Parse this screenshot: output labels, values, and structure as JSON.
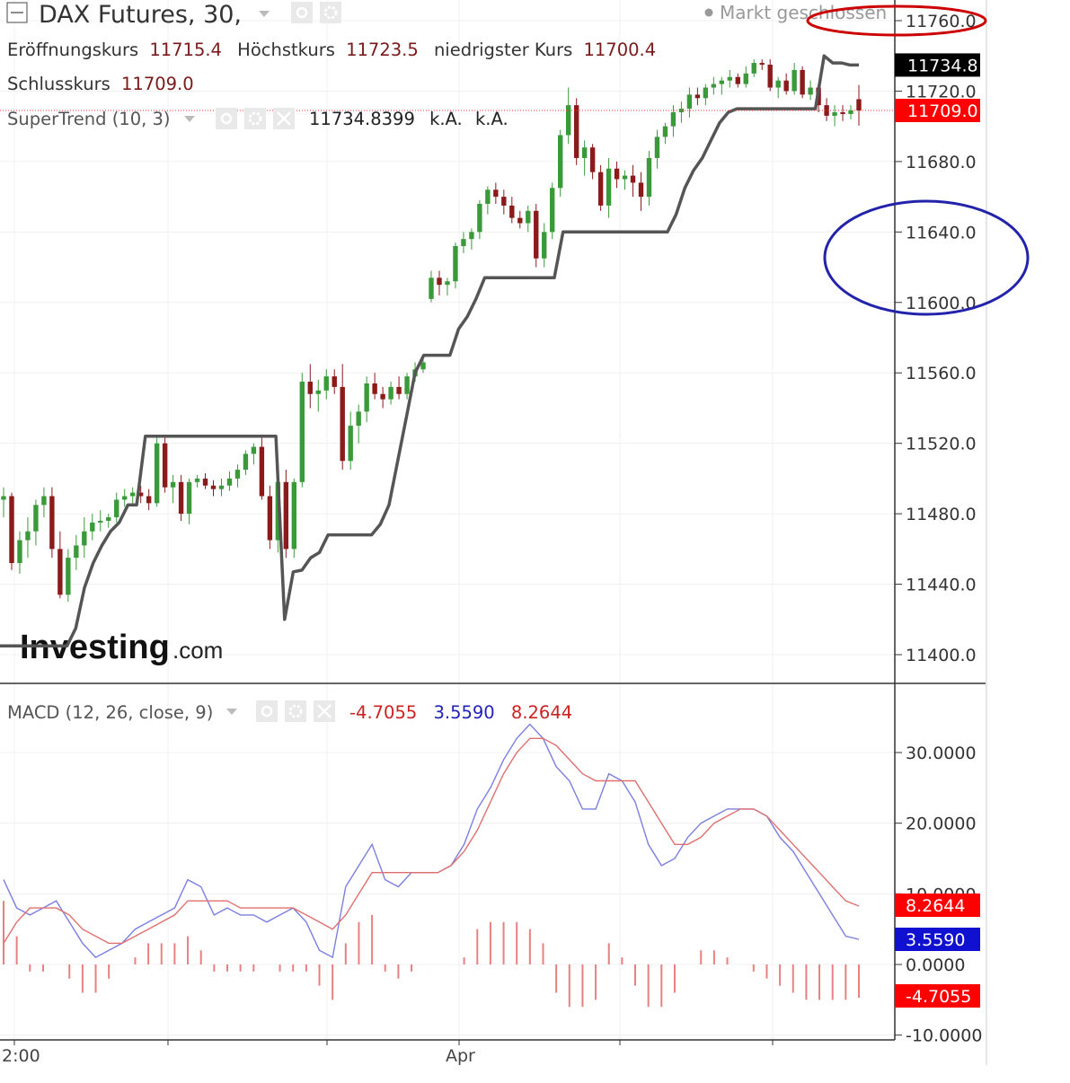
{
  "header": {
    "symbol": "DAX Futures, 30,",
    "market_status": "Markt geschlossen",
    "ohlc": [
      {
        "label": "Eröffnungskurs",
        "value": "11715.4"
      },
      {
        "label": "Höchstkurs",
        "value": "11723.5"
      },
      {
        "label": "niedrigster Kurs",
        "value": "11700.4"
      },
      {
        "label": "Schlusskurs",
        "value": "11709.0"
      }
    ]
  },
  "supertrend_legend": {
    "name": "SuperTrend (10, 3)",
    "value": "11734.8399",
    "v2": "k.A.",
    "v3": "k.A."
  },
  "macd_legend": {
    "name": "MACD (12, 26, close, 9)",
    "hist": "-4.7055",
    "macd": "3.5590",
    "signal": "8.2644"
  },
  "watermark": {
    "brand": "Investing",
    "suffix": ".com"
  },
  "colors": {
    "up": "#3a9a3a",
    "down": "#8b1a1a",
    "supertrend": "#555555",
    "macd_line": "#7b7fe0",
    "signal_line": "#e07070",
    "histogram": "#e88080",
    "last_price_bg": "#ff0000",
    "supertrend_tag_bg": "#000000",
    "macd_tag_bg": "#1010d0",
    "annotation_red": "#cc0000",
    "annotation_blue": "#2222aa"
  },
  "chart_data": [
    {
      "type": "candlestick",
      "name": "price",
      "y_ticks": [
        11760,
        11720,
        11680,
        11640,
        11600,
        11560,
        11520,
        11480,
        11440,
        11400
      ],
      "y_tick_labels": [
        "11760.0",
        "11720.0",
        "11680.0",
        "11640.0",
        "11600.0",
        "11560.0",
        "11520.0",
        "11480.0",
        "11440.0",
        "11400.0"
      ],
      "ylim": [
        11385,
        11765
      ],
      "x_labels": [
        "2:00",
        "Apr"
      ],
      "last_close": 11709.0,
      "last_close_label": "11709.0",
      "supertrend_last": 11734.8,
      "supertrend_label": "11734.8",
      "ohlc": [
        [
          11488,
          11495,
          11478,
          11490
        ],
        [
          11490,
          11492,
          11448,
          11452
        ],
        [
          11452,
          11470,
          11446,
          11465
        ],
        [
          11465,
          11478,
          11455,
          11470
        ],
        [
          11470,
          11488,
          11462,
          11485
        ],
        [
          11485,
          11495,
          11478,
          11490
        ],
        [
          11490,
          11495,
          11455,
          11460
        ],
        [
          11460,
          11470,
          11432,
          11434
        ],
        [
          11434,
          11460,
          11430,
          11455
        ],
        [
          11455,
          11468,
          11448,
          11462
        ],
        [
          11462,
          11478,
          11455,
          11470
        ],
        [
          11470,
          11480,
          11465,
          11475
        ],
        [
          11475,
          11482,
          11470,
          11476
        ],
        [
          11476,
          11480,
          11472,
          11478
        ],
        [
          11478,
          11492,
          11475,
          11488
        ],
        [
          11488,
          11494,
          11484,
          11490
        ],
        [
          11490,
          11495,
          11485,
          11492
        ],
        [
          11492,
          11496,
          11486,
          11490
        ],
        [
          11490,
          11494,
          11482,
          11486
        ],
        [
          11486,
          11524,
          11484,
          11520
        ],
        [
          11520,
          11524,
          11492,
          11495
        ],
        [
          11495,
          11502,
          11486,
          11498
        ],
        [
          11498,
          11502,
          11476,
          11480
        ],
        [
          11480,
          11500,
          11474,
          11498
        ],
        [
          11498,
          11502,
          11495,
          11500
        ],
        [
          11500,
          11503,
          11494,
          11496
        ],
        [
          11496,
          11499,
          11490,
          11494
        ],
        [
          11494,
          11500,
          11490,
          11496
        ],
        [
          11496,
          11504,
          11493,
          11500
        ],
        [
          11500,
          11508,
          11495,
          11505
        ],
        [
          11505,
          11516,
          11502,
          11514
        ],
        [
          11514,
          11520,
          11508,
          11518
        ],
        [
          11518,
          11525,
          11488,
          11490
        ],
        [
          11490,
          11496,
          11460,
          11465
        ],
        [
          11465,
          11500,
          11458,
          11498
        ],
        [
          11498,
          11505,
          11455,
          11460
        ],
        [
          11460,
          11500,
          11455,
          11498
        ],
        [
          11498,
          11560,
          11495,
          11555
        ],
        [
          11555,
          11565,
          11540,
          11548
        ],
        [
          11548,
          11556,
          11538,
          11550
        ],
        [
          11550,
          11562,
          11545,
          11558
        ],
        [
          11558,
          11562,
          11548,
          11552
        ],
        [
          11552,
          11565,
          11505,
          11510
        ],
        [
          11510,
          11538,
          11505,
          11530
        ],
        [
          11530,
          11542,
          11520,
          11538
        ],
        [
          11538,
          11558,
          11532,
          11554
        ],
        [
          11554,
          11560,
          11545,
          11548
        ],
        [
          11548,
          11552,
          11540,
          11545
        ],
        [
          11545,
          11555,
          11542,
          11552
        ],
        [
          11552,
          11558,
          11545,
          11548
        ],
        [
          11548,
          11560,
          11545,
          11558
        ],
        [
          11558,
          11566,
          11555,
          11562
        ],
        [
          11562,
          11568,
          11560,
          11566
        ],
        [
          11602,
          11618,
          11600,
          11614
        ],
        [
          11614,
          11618,
          11604,
          11610
        ],
        [
          11610,
          11614,
          11604,
          11612
        ],
        [
          11612,
          11634,
          11608,
          11632
        ],
        [
          11632,
          11640,
          11628,
          11636
        ],
        [
          11636,
          11642,
          11630,
          11640
        ],
        [
          11640,
          11658,
          11636,
          11656
        ],
        [
          11656,
          11666,
          11650,
          11664
        ],
        [
          11664,
          11668,
          11656,
          11660
        ],
        [
          11660,
          11664,
          11650,
          11655
        ],
        [
          11655,
          11660,
          11645,
          11648
        ],
        [
          11648,
          11652,
          11642,
          11645
        ],
        [
          11645,
          11655,
          11640,
          11652
        ],
        [
          11652,
          11656,
          11620,
          11625
        ],
        [
          11625,
          11645,
          11620,
          11640
        ],
        [
          11640,
          11668,
          11636,
          11665
        ],
        [
          11665,
          11698,
          11660,
          11695
        ],
        [
          11695,
          11722,
          11690,
          11712
        ],
        [
          11712,
          11716,
          11678,
          11682
        ],
        [
          11682,
          11692,
          11672,
          11688
        ],
        [
          11688,
          11690,
          11670,
          11674
        ],
        [
          11674,
          11678,
          11652,
          11655
        ],
        [
          11655,
          11682,
          11648,
          11676
        ],
        [
          11676,
          11680,
          11665,
          11670
        ],
        [
          11670,
          11675,
          11664,
          11672
        ],
        [
          11672,
          11678,
          11660,
          11668
        ],
        [
          11668,
          11674,
          11652,
          11660
        ],
        [
          11660,
          11686,
          11655,
          11682
        ],
        [
          11682,
          11698,
          11676,
          11694
        ],
        [
          11694,
          11702,
          11690,
          11700
        ],
        [
          11700,
          11712,
          11694,
          11708
        ],
        [
          11708,
          11714,
          11702,
          11710
        ],
        [
          11710,
          11722,
          11705,
          11718
        ],
        [
          11718,
          11722,
          11712,
          11716
        ],
        [
          11716,
          11724,
          11712,
          11722
        ],
        [
          11722,
          11728,
          11718,
          11724
        ],
        [
          11724,
          11728,
          11718,
          11726
        ],
        [
          11726,
          11732,
          11722,
          11728
        ],
        [
          11728,
          11730,
          11722,
          11724
        ],
        [
          11724,
          11734,
          11722,
          11730
        ],
        [
          11730,
          11738,
          11728,
          11736
        ],
        [
          11736,
          11738,
          11732,
          11735
        ],
        [
          11735,
          11738,
          11720,
          11722
        ],
        [
          11722,
          11728,
          11716,
          11726
        ],
        [
          11726,
          11730,
          11718,
          11720
        ],
        [
          11720,
          11736,
          11718,
          11732
        ],
        [
          11732,
          11734,
          11716,
          11718
        ],
        [
          11718,
          11726,
          11715,
          11722
        ],
        [
          11722,
          11724,
          11708,
          11712
        ],
        [
          11712,
          11716,
          11703,
          11706
        ],
        [
          11706,
          11712,
          11700,
          11708
        ],
        [
          11708,
          11712,
          11703,
          11707
        ],
        [
          11707,
          11712,
          11704,
          11709
        ],
        [
          11715.4,
          11723.5,
          11700.4,
          11709.0
        ]
      ],
      "supertrend": [
        11405,
        11405,
        11405,
        11405,
        11405,
        11405,
        11405,
        11405,
        11405,
        11405,
        11405,
        11405,
        11415,
        11438,
        11452,
        11462,
        11470,
        11475,
        11485,
        11485,
        11524,
        11524,
        11524,
        11524,
        11524,
        11524,
        11524,
        11524,
        11524,
        11524,
        11524,
        11524,
        11524,
        11524,
        11524,
        11524,
        11420,
        11447,
        11448,
        11455,
        11458,
        11468,
        11468,
        11468,
        11468,
        11468,
        11468,
        11474,
        11485,
        11510,
        11535,
        11560,
        11570,
        11570,
        11570,
        11570,
        11585,
        11592,
        11602,
        11614,
        11614,
        11614,
        11614,
        11614,
        11614,
        11614,
        11614,
        11614,
        11640,
        11640,
        11640,
        11640,
        11640,
        11640,
        11640,
        11640,
        11640,
        11640,
        11640,
        11640,
        11640,
        11650,
        11665,
        11675,
        11682,
        11692,
        11702,
        11708,
        11710,
        11710,
        11710,
        11710,
        11710,
        11710,
        11710,
        11710,
        11710,
        11710,
        11740,
        11736,
        11736,
        11734.8,
        11734.8
      ]
    },
    {
      "type": "line",
      "name": "macd",
      "y_ticks": [
        30,
        20,
        10,
        0,
        -10
      ],
      "y_tick_labels": [
        "30.0000",
        "20.0000",
        "10.0000",
        "0.0000",
        "-10.0000"
      ],
      "ylim": [
        -11,
        38
      ],
      "series": [
        {
          "name": "MACD",
          "values": [
            12,
            8,
            7,
            8,
            9,
            6,
            3,
            1,
            2,
            3,
            5,
            6,
            7,
            8,
            12,
            11,
            7,
            8,
            7,
            7,
            6,
            7,
            8,
            6,
            2,
            1,
            11,
            14,
            17,
            12,
            11,
            13,
            13,
            13,
            14,
            17,
            22,
            25,
            29,
            32,
            34,
            32,
            28,
            26,
            22,
            22,
            27,
            26,
            23,
            17,
            14,
            15,
            18,
            20,
            21,
            22,
            22,
            22,
            21,
            18,
            16,
            13,
            10,
            7,
            4,
            3.559
          ]
        },
        {
          "name": "Signal",
          "values": [
            3,
            6,
            8,
            8,
            8,
            7,
            5,
            4,
            3,
            3,
            4,
            5,
            6,
            7,
            9,
            9,
            9,
            9,
            8,
            8,
            8,
            8,
            8,
            7,
            6,
            5,
            7,
            10,
            13,
            13,
            13,
            13,
            13,
            13,
            14,
            16,
            19,
            23,
            27,
            30,
            32,
            32,
            31,
            29,
            27,
            26,
            26,
            26,
            26,
            23,
            20,
            17,
            17,
            18,
            20,
            21,
            22,
            22,
            21,
            19,
            17,
            15,
            13,
            11,
            9,
            8.2644
          ]
        }
      ],
      "histogram": [
        9,
        4,
        -1,
        -1,
        0,
        -2,
        -4,
        -4,
        -2,
        0,
        1,
        3,
        3,
        3,
        4,
        2,
        -1,
        -1,
        -1,
        -1,
        0,
        -1,
        -1,
        -1,
        -3,
        -5,
        3,
        6,
        7,
        -1,
        -2,
        -1,
        0,
        0,
        0,
        1,
        5,
        6,
        6,
        6,
        5,
        3,
        -4,
        -6,
        -6,
        -5,
        3,
        1,
        -3,
        -6,
        -6,
        -4,
        0,
        2,
        2,
        1,
        0,
        -1,
        -2,
        -3,
        -4,
        -5,
        -5,
        -5,
        -5,
        -4.7055
      ]
    }
  ]
}
